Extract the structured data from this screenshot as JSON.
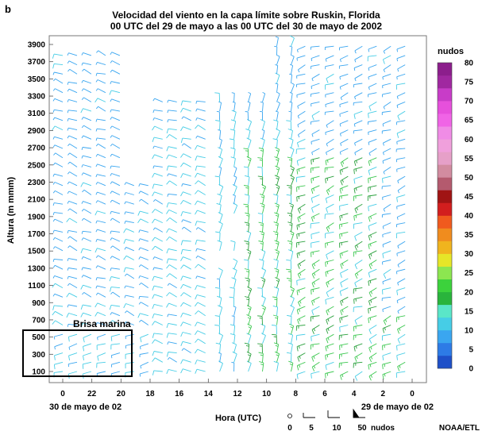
{
  "panel_label": "b",
  "chart_data": {
    "type": "wind-barb profile (time-height)",
    "title": "Velocidad del viento en la capa límite sobre Ruskin, Florida",
    "subtitle": "00 UTC del 29 de mayo a las 00 UTC del 30 de mayo de 2002",
    "ylabel": "Altura (m mmm)",
    "xlabel": "Hora (UTC)",
    "y_ticks": [
      100,
      300,
      500,
      700,
      900,
      1100,
      1300,
      1500,
      1700,
      1900,
      2100,
      2300,
      2500,
      2700,
      2900,
      3100,
      3300,
      3500,
      3700,
      3900
    ],
    "ylim": [
      0,
      4000
    ],
    "x_tick_labels": [
      "0",
      "22",
      "20",
      "18",
      "16",
      "14",
      "12",
      "10",
      "8",
      "6",
      "4",
      "2",
      "0"
    ],
    "x_direction": "time increases right-to-left",
    "x_date_left": "30 de mayo de 02",
    "x_date_right": "29 de mayo de 02",
    "annotation": "Brisa marina",
    "colorbar": {
      "title": "nudos",
      "ticks": [
        0,
        5,
        10,
        15,
        20,
        25,
        30,
        35,
        40,
        45,
        50,
        55,
        60,
        65,
        70,
        75,
        80
      ],
      "range": [
        0,
        80
      ],
      "colors": [
        "#1e50c8",
        "#2d7be6",
        "#3aa6f0",
        "#46cde6",
        "#5ae6c8",
        "#29b43c",
        "#3cd23c",
        "#8ce650",
        "#e6e628",
        "#f0b41e",
        "#f08c1e",
        "#f05a1e",
        "#d21e1e",
        "#a01414",
        "#b45a6e",
        "#d28ca0",
        "#e6a0c8",
        "#f0a0dc",
        "#f08ce6",
        "#f064e6",
        "#e650dc",
        "#c83cc8",
        "#a028a0",
        "#8c1e8c"
      ]
    },
    "legend": {
      "items": [
        "0",
        "5",
        "10",
        "50",
        "nudos"
      ]
    },
    "speed_color_keys": [
      {
        "max_knots": 5,
        "color": "#2d7be6"
      },
      {
        "max_knots": 10,
        "color": "#3aa6f0"
      },
      {
        "max_knots": 15,
        "color": "#46cde6"
      },
      {
        "max_knots": 20,
        "color": "#29b43c"
      }
    ]
  },
  "credit": "NOAA/ETL"
}
